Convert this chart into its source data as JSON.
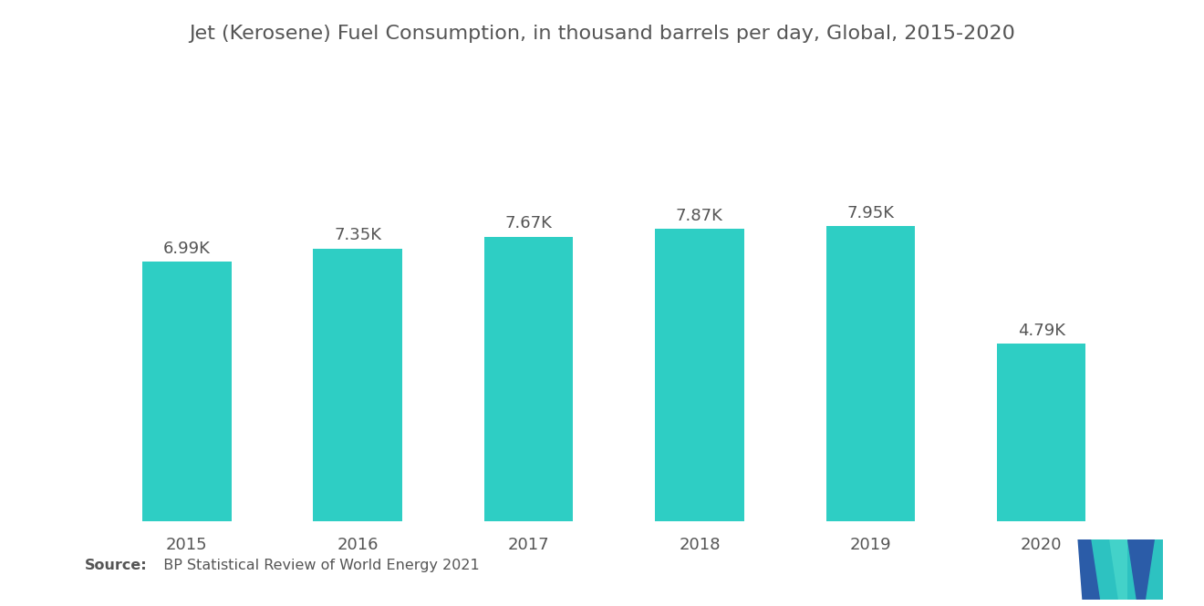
{
  "title": "Jet (Kerosene) Fuel Consumption, in thousand barrels per day, Global, 2015-2020",
  "years": [
    "2015",
    "2016",
    "2017",
    "2018",
    "2019",
    "2020"
  ],
  "values": [
    6990,
    7350,
    7670,
    7870,
    7950,
    4790
  ],
  "labels": [
    "6.99K",
    "7.35K",
    "7.67K",
    "7.87K",
    "7.95K",
    "4.79K"
  ],
  "bar_color": "#2ECEC4",
  "background_color": "#ffffff",
  "title_fontsize": 16,
  "tick_fontsize": 13,
  "label_fontsize": 13,
  "source_bold": "Source:",
  "source_normal": "  BP Statistical Review of World Energy 2021",
  "ylim": [
    0,
    9800
  ],
  "bar_width": 0.52,
  "logo_blue": "#2B5CA8",
  "logo_teal": "#2ECEC4"
}
